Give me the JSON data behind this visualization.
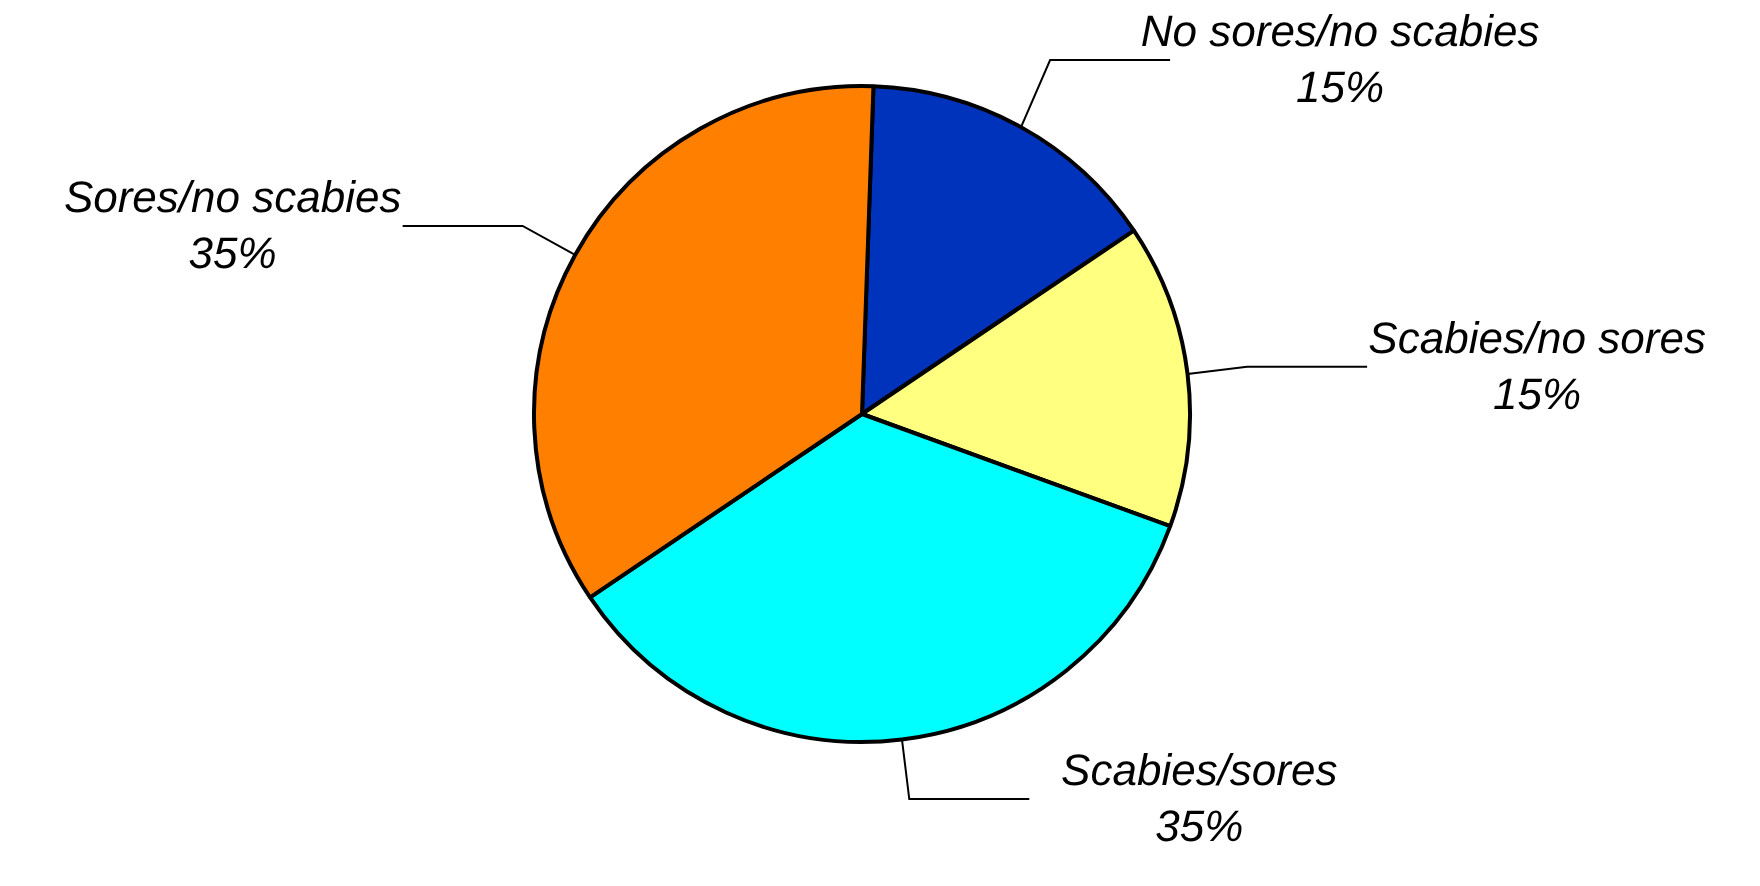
{
  "chart_data": {
    "type": "pie",
    "categories": [
      "No sores/no scabies",
      "Scabies/no sores",
      "Scabies/sores",
      "Sores/no scabies"
    ],
    "values": [
      15,
      15,
      35,
      35
    ],
    "value_labels": [
      "15%",
      "15%",
      "35%",
      "35%"
    ],
    "colors": [
      "#0033bb",
      "#ffff80",
      "#00ffff",
      "#ff8000"
    ],
    "legend": false
  }
}
